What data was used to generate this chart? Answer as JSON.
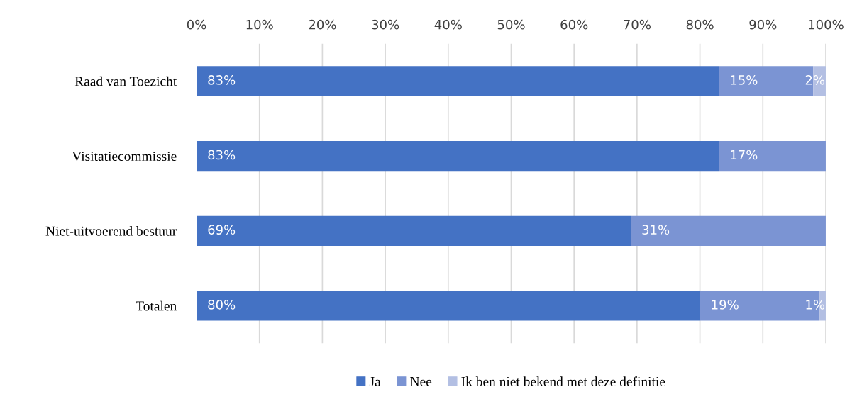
{
  "chart_data": {
    "type": "bar",
    "orientation": "horizontal",
    "stacked": true,
    "categories": [
      "Raad van Toezicht",
      "Visitatiecommissie",
      "Niet-uitvoerend bestuur",
      "Totalen"
    ],
    "series": [
      {
        "name": "Ja",
        "color": "#4472c4",
        "values": [
          83,
          83,
          69,
          80
        ],
        "value_labels": [
          "83%",
          "83%",
          "69%",
          "80%"
        ]
      },
      {
        "name": "Nee",
        "color": "#7b94d3",
        "values": [
          15,
          17,
          31,
          19
        ],
        "value_labels": [
          "15%",
          "17%",
          "31%",
          "19%"
        ]
      },
      {
        "name": "Ik ben niet bekend met deze definitie",
        "color": "#b3bfe3",
        "values": [
          2,
          null,
          null,
          1
        ],
        "value_labels": [
          "2%",
          null,
          null,
          "1%"
        ]
      }
    ],
    "xlim": [
      0,
      100
    ],
    "xticks": [
      {
        "value": 0,
        "label": "0%"
      },
      {
        "value": 10,
        "label": "10%"
      },
      {
        "value": 20,
        "label": "20%"
      },
      {
        "value": 30,
        "label": "30%"
      },
      {
        "value": 40,
        "label": "40%"
      },
      {
        "value": 50,
        "label": "50%"
      },
      {
        "value": 60,
        "label": "60%"
      },
      {
        "value": 70,
        "label": "70%"
      },
      {
        "value": 80,
        "label": "80%"
      },
      {
        "value": 90,
        "label": "90%"
      },
      {
        "value": 100,
        "label": "100%"
      }
    ],
    "grid": "x",
    "legend": "bottom"
  }
}
